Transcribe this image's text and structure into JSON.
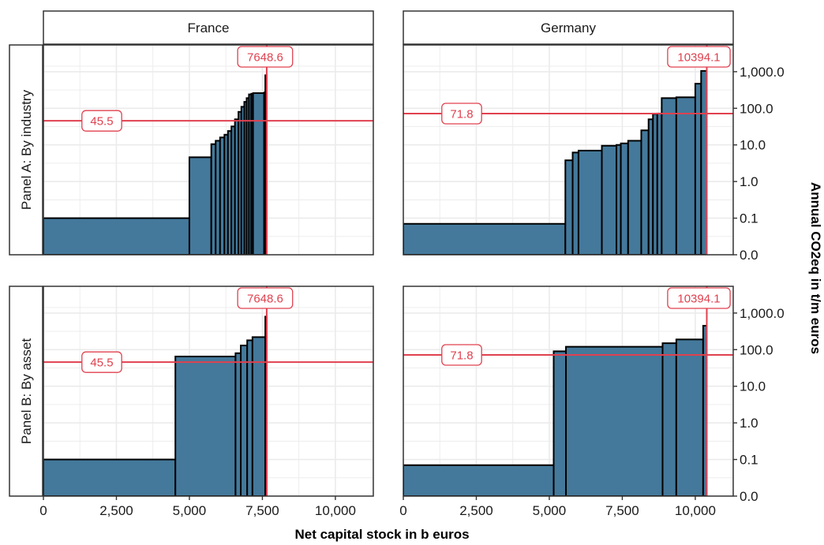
{
  "chart_data": {
    "type": "bar",
    "facets": {
      "columns": [
        "France",
        "Germany"
      ],
      "rows": [
        "Panel A: By industry",
        "Panel B: By asset"
      ]
    },
    "xlabel": "Net capital stock in b euros",
    "ylabel": "Annual CO2eq in t/m euros",
    "x_ticks": [
      0,
      2500,
      5000,
      7500,
      10000
    ],
    "x_tick_labels": [
      "0",
      "2,500",
      "5,000",
      "7,500",
      "10,000"
    ],
    "xlim": [
      0,
      11300
    ],
    "y_scale": "log",
    "y_ticks": [
      0,
      0.1,
      1,
      10,
      100,
      1000
    ],
    "y_tick_labels": [
      "0.0",
      "0.1",
      "1.0",
      "10.0",
      "100.0",
      "1,000.0"
    ],
    "grid": true,
    "colors": {
      "bar_fill": "#44799b",
      "reference_line": "#e0414f",
      "panel_border": "#333333",
      "strip_fill": "#ffffff",
      "grid": "#ebebeb"
    },
    "panels": [
      {
        "row": 0,
        "col": 0,
        "mean_line": 45.5,
        "mean_label": "45.5",
        "total_line": 7648.6,
        "total_label": "7648.6",
        "bars": [
          {
            "x0": 0,
            "x1": 5000,
            "y": 0.1
          },
          {
            "x0": 5000,
            "x1": 5750,
            "y": 4.6
          },
          {
            "x0": 5750,
            "x1": 5900,
            "y": 10.5
          },
          {
            "x0": 5900,
            "x1": 6050,
            "y": 13
          },
          {
            "x0": 6050,
            "x1": 6200,
            "y": 16
          },
          {
            "x0": 6200,
            "x1": 6320,
            "y": 19
          },
          {
            "x0": 6320,
            "x1": 6440,
            "y": 24
          },
          {
            "x0": 6440,
            "x1": 6560,
            "y": 32
          },
          {
            "x0": 6560,
            "x1": 6680,
            "y": 50
          },
          {
            "x0": 6680,
            "x1": 6780,
            "y": 80
          },
          {
            "x0": 6780,
            "x1": 6880,
            "y": 110
          },
          {
            "x0": 6880,
            "x1": 6960,
            "y": 150
          },
          {
            "x0": 6960,
            "x1": 7040,
            "y": 190
          },
          {
            "x0": 7040,
            "x1": 7120,
            "y": 240
          },
          {
            "x0": 7120,
            "x1": 7180,
            "y": 250
          },
          {
            "x0": 7180,
            "x1": 7560,
            "y": 260
          },
          {
            "x0": 7560,
            "x1": 7600,
            "y": 270
          },
          {
            "x0": 7600,
            "x1": 7648.6,
            "y": 800
          }
        ]
      },
      {
        "row": 0,
        "col": 1,
        "mean_line": 71.8,
        "mean_label": "71.8",
        "total_line": 10394.1,
        "total_label": "10394.1",
        "bars": [
          {
            "x0": 0,
            "x1": 5550,
            "y": 0.07
          },
          {
            "x0": 5550,
            "x1": 5800,
            "y": 3.8
          },
          {
            "x0": 5800,
            "x1": 6000,
            "y": 6.2
          },
          {
            "x0": 6000,
            "x1": 6800,
            "y": 7
          },
          {
            "x0": 6800,
            "x1": 7300,
            "y": 9.5
          },
          {
            "x0": 7300,
            "x1": 7450,
            "y": 10
          },
          {
            "x0": 7450,
            "x1": 7700,
            "y": 11
          },
          {
            "x0": 7700,
            "x1": 8150,
            "y": 13
          },
          {
            "x0": 8150,
            "x1": 8400,
            "y": 25
          },
          {
            "x0": 8400,
            "x1": 8550,
            "y": 50
          },
          {
            "x0": 8550,
            "x1": 8700,
            "y": 70
          },
          {
            "x0": 8700,
            "x1": 8850,
            "y": 72
          },
          {
            "x0": 8850,
            "x1": 9350,
            "y": 190
          },
          {
            "x0": 9350,
            "x1": 10000,
            "y": 200
          },
          {
            "x0": 10000,
            "x1": 10200,
            "y": 470
          },
          {
            "x0": 10200,
            "x1": 10394.1,
            "y": 1050
          }
        ]
      },
      {
        "row": 1,
        "col": 0,
        "mean_line": 45.5,
        "mean_label": "45.5",
        "total_line": 7648.6,
        "total_label": "7648.6",
        "bars": [
          {
            "x0": 0,
            "x1": 4520,
            "y": 0.1
          },
          {
            "x0": 4520,
            "x1": 6580,
            "y": 65
          },
          {
            "x0": 6580,
            "x1": 6760,
            "y": 80
          },
          {
            "x0": 6760,
            "x1": 6980,
            "y": 130
          },
          {
            "x0": 6980,
            "x1": 7160,
            "y": 180
          },
          {
            "x0": 7160,
            "x1": 7600,
            "y": 220
          },
          {
            "x0": 7600,
            "x1": 7648.6,
            "y": 800
          }
        ]
      },
      {
        "row": 1,
        "col": 1,
        "mean_line": 71.8,
        "mean_label": "71.8",
        "total_line": 10394.1,
        "total_label": "10394.1",
        "bars": [
          {
            "x0": 0,
            "x1": 5150,
            "y": 0.07
          },
          {
            "x0": 5150,
            "x1": 5570,
            "y": 90
          },
          {
            "x0": 5570,
            "x1": 8880,
            "y": 120
          },
          {
            "x0": 8880,
            "x1": 9350,
            "y": 150
          },
          {
            "x0": 9350,
            "x1": 10270,
            "y": 190
          },
          {
            "x0": 10270,
            "x1": 10394.1,
            "y": 450
          }
        ]
      }
    ]
  }
}
